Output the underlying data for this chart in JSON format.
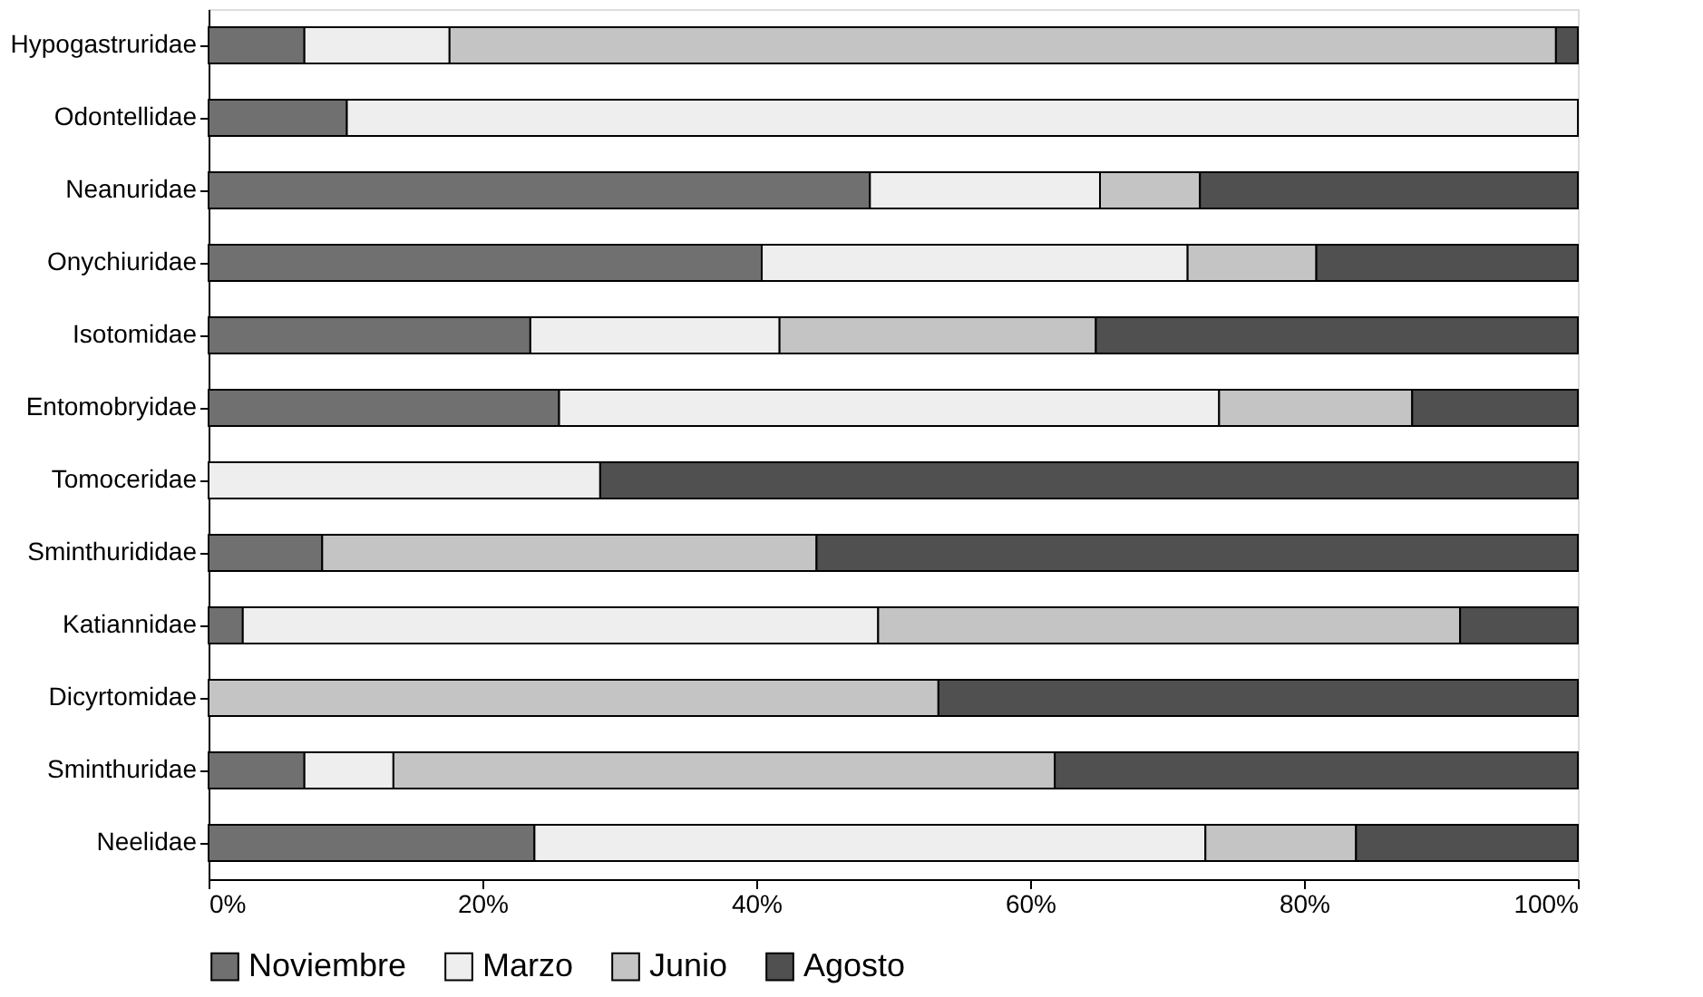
{
  "chart_data": {
    "type": "bar",
    "orientation": "horizontal",
    "stacked": true,
    "categories": [
      "Hypogastruridae",
      "Odontellidae",
      "Neanuridae",
      "Onychiuridae",
      "Isotomidae",
      "Entomobryidae",
      "Tomoceridae",
      "Sminthurididae",
      "Katiannidae",
      "Dicyrtomidae",
      "Sminthuridae",
      "Neelidae"
    ],
    "series": [
      {
        "name": "Noviembre",
        "color": "#707070",
        "values": [
          7.0,
          10.1,
          48.3,
          40.4,
          23.5,
          25.6,
          0,
          8.3,
          2.5,
          0,
          7.0,
          23.8
        ]
      },
      {
        "name": "Marzo",
        "color": "#eeeeee",
        "values": [
          10.6,
          89.9,
          16.8,
          31.1,
          18.2,
          48.2,
          28.6,
          0,
          46.4,
          0,
          6.5,
          49.0
        ]
      },
      {
        "name": "Junio",
        "color": "#c4c4c4",
        "values": [
          80.8,
          0,
          7.3,
          9.4,
          23.1,
          14.1,
          0,
          36.1,
          42.5,
          53.3,
          48.3,
          11.0
        ]
      },
      {
        "name": "Agosto",
        "color": "#505050",
        "values": [
          1.6,
          0,
          27.6,
          19.1,
          35.2,
          12.1,
          71.4,
          55.6,
          8.6,
          46.7,
          38.2,
          16.2
        ]
      }
    ],
    "xlim": [
      0,
      100
    ],
    "xticks": [
      {
        "value": 0,
        "label": "0%"
      },
      {
        "value": 20,
        "label": "20%"
      },
      {
        "value": 40,
        "label": "40%"
      },
      {
        "value": 60,
        "label": "60%"
      },
      {
        "value": 80,
        "label": "80%"
      },
      {
        "value": 100,
        "label": "100%"
      }
    ],
    "grid": false,
    "legend": "bottom"
  }
}
